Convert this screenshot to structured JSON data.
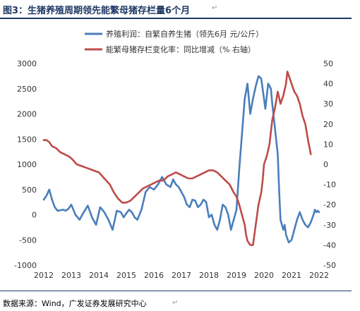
{
  "header": {
    "title": "图3：生猪养殖周期领先能繁母猪存栏量6个月",
    "para_mark": "↵"
  },
  "source": {
    "text": "数据来源：Wind，广发证券发展研究中心",
    "para_mark": "↵"
  },
  "colors": {
    "title": "#1f3864",
    "series1": "#4a7ebb",
    "series2": "#be4b48",
    "axis_text": "#333333"
  },
  "chart_data": {
    "type": "line",
    "xlabel": "",
    "ylabel": "",
    "x_ticks": [
      "2012",
      "2013",
      "2014",
      "2015",
      "2016",
      "2017",
      "2018",
      "2019",
      "2020",
      "2021",
      "2022"
    ],
    "xlim": [
      2012,
      2022
    ],
    "ylim_left": [
      -1000,
      3000
    ],
    "yticks_left": [
      3000,
      2500,
      2000,
      1500,
      1000,
      500,
      0,
      -500,
      -1000
    ],
    "ylim_right": [
      -50,
      50
    ],
    "yticks_right": [
      50,
      40,
      30,
      20,
      10,
      0,
      -10,
      -20,
      -30,
      -40,
      -50
    ],
    "grid": false,
    "legend_position": "top",
    "series": [
      {
        "name": "养殖利润：自繁自养生猪（领先6月 元/公斤）",
        "axis": "left",
        "color": "#4a7ebb",
        "x": [
          2012.0,
          2012.1,
          2012.2,
          2012.3,
          2012.4,
          2012.5,
          2012.7,
          2012.8,
          2012.9,
          2013.0,
          2013.15,
          2013.3,
          2013.45,
          2013.6,
          2013.75,
          2013.9,
          2014.05,
          2014.2,
          2014.35,
          2014.5,
          2014.65,
          2014.8,
          2014.9,
          2015.0,
          2015.1,
          2015.2,
          2015.3,
          2015.4,
          2015.55,
          2015.7,
          2015.85,
          2016.0,
          2016.15,
          2016.3,
          2016.45,
          2016.6,
          2016.7,
          2016.8,
          2016.9,
          2017.0,
          2017.1,
          2017.2,
          2017.3,
          2017.4,
          2017.5,
          2017.6,
          2017.7,
          2017.8,
          2017.9,
          2018.0,
          2018.1,
          2018.2,
          2018.3,
          2018.4,
          2018.5,
          2018.6,
          2018.7,
          2018.8,
          2018.9,
          2019.0,
          2019.1,
          2019.2,
          2019.3,
          2019.4,
          2019.5,
          2019.6,
          2019.7,
          2019.8,
          2019.9,
          2020.0,
          2020.05,
          2020.15,
          2020.25,
          2020.3,
          2020.4,
          2020.5,
          2020.55,
          2020.6,
          2020.7,
          2020.75,
          2020.8,
          2020.9,
          2021.0,
          2021.1,
          2021.2,
          2021.3,
          2021.4,
          2021.5,
          2021.6,
          2021.7,
          2021.8,
          2021.85,
          2021.9,
          2021.95,
          2022.0
        ],
        "values": [
          300,
          380,
          500,
          300,
          150,
          80,
          100,
          80,
          120,
          200,
          0,
          -100,
          50,
          180,
          -50,
          -200,
          150,
          50,
          -100,
          -300,
          80,
          50,
          -50,
          30,
          100,
          50,
          -50,
          -100,
          100,
          450,
          550,
          500,
          600,
          750,
          600,
          550,
          700,
          600,
          550,
          450,
          350,
          200,
          150,
          300,
          280,
          150,
          200,
          300,
          250,
          -50,
          0,
          -200,
          -300,
          -100,
          200,
          150,
          0,
          -300,
          -100,
          100,
          900,
          1600,
          2300,
          2600,
          2000,
          2300,
          2550,
          2750,
          2700,
          2300,
          2100,
          2600,
          2500,
          2200,
          1700,
          1200,
          500,
          -100,
          -300,
          -200,
          -400,
          -550,
          -500,
          -300,
          -100,
          50,
          -100,
          -200,
          -250,
          -150,
          0,
          100,
          50,
          80,
          50
        ]
      },
      {
        "name": "能繁母猪存栏变化率：同比增减（% 右轴）",
        "axis": "right",
        "color": "#be4b48",
        "x": [
          2012.0,
          2012.1,
          2012.2,
          2012.3,
          2012.45,
          2012.6,
          2012.75,
          2012.9,
          2013.0,
          2013.2,
          2013.4,
          2013.6,
          2013.8,
          2014.0,
          2014.2,
          2014.4,
          2014.55,
          2014.7,
          2014.85,
          2015.0,
          2015.15,
          2015.3,
          2015.45,
          2015.6,
          2015.75,
          2015.9,
          2016.05,
          2016.2,
          2016.35,
          2016.5,
          2016.65,
          2016.8,
          2016.95,
          2017.1,
          2017.25,
          2017.4,
          2017.55,
          2017.7,
          2017.85,
          2018.0,
          2018.15,
          2018.3,
          2018.45,
          2018.6,
          2018.75,
          2018.9,
          2019.0,
          2019.1,
          2019.2,
          2019.3,
          2019.35,
          2019.4,
          2019.5,
          2019.6,
          2019.7,
          2019.8,
          2019.9,
          2019.95,
          2020.0,
          2020.1,
          2020.2,
          2020.3,
          2020.4,
          2020.5,
          2020.6,
          2020.7,
          2020.8,
          2020.85,
          2020.9,
          2021.0,
          2021.1,
          2021.2,
          2021.3,
          2021.4,
          2021.5,
          2021.6,
          2021.7
        ],
        "values": [
          12,
          12,
          11,
          9,
          8,
          6,
          5,
          4,
          3,
          0,
          -1,
          -2,
          -3,
          -4,
          -7,
          -10,
          -14,
          -17,
          -19,
          -19,
          -18,
          -16,
          -14,
          -12,
          -11,
          -10,
          -9,
          -8,
          -8,
          -6,
          -5,
          -4,
          -5,
          -6,
          -7,
          -7,
          -6,
          -5,
          -4,
          -3,
          -3,
          -4,
          -6,
          -8,
          -10,
          -14,
          -16,
          -20,
          -25,
          -30,
          -35,
          -38,
          -40,
          -40,
          -30,
          -20,
          -14,
          -8,
          0,
          4,
          10,
          22,
          28,
          36,
          30,
          34,
          40,
          46,
          44,
          40,
          36,
          34,
          30,
          24,
          20,
          12,
          5
        ]
      }
    ]
  }
}
